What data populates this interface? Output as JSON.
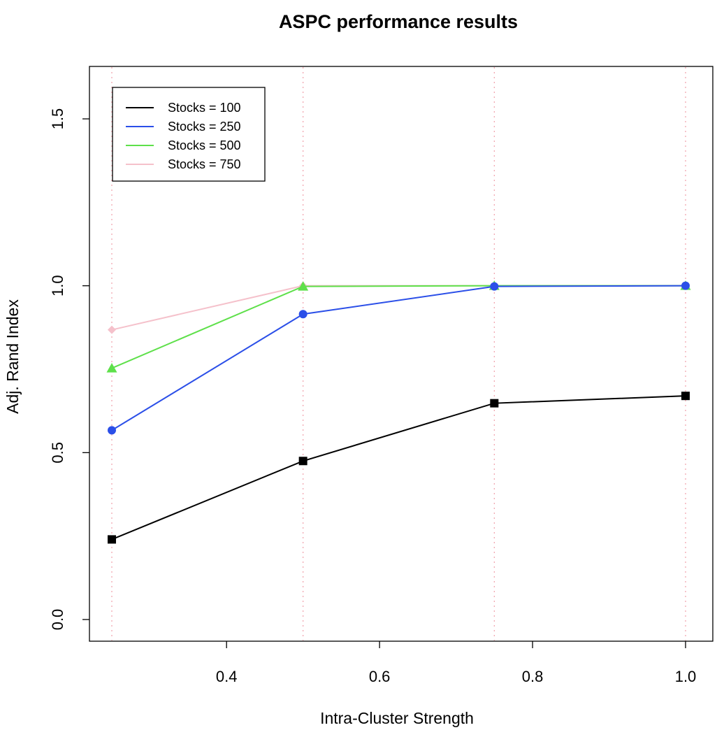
{
  "chart_data": {
    "type": "line",
    "title": "ASPC performance results",
    "xlabel": "Intra-Cluster Strength",
    "ylabel": "Adj. Rand Index",
    "x": [
      0.25,
      0.5,
      0.75,
      1.0
    ],
    "xlim": [
      0.25,
      1.0
    ],
    "ylim": [
      0.0,
      1.6
    ],
    "xticks": [
      0.4,
      0.6,
      0.8,
      1.0
    ],
    "xtick_labels": [
      "0.4",
      "0.6",
      "0.8",
      "1.0"
    ],
    "yticks": [
      0.0,
      0.5,
      1.0,
      1.5
    ],
    "ytick_labels": [
      "0.0",
      "0.5",
      "1.0",
      "1.5"
    ],
    "grid": "dotted vertical lines at x values",
    "legend_position": "top-left",
    "series": [
      {
        "name": "Stocks = 100",
        "values": [
          0.24,
          0.475,
          0.648,
          0.67
        ],
        "color": "#000000",
        "marker": "square"
      },
      {
        "name": "Stocks = 250",
        "values": [
          0.567,
          0.915,
          0.998,
          1.0
        ],
        "color": "#2b4fe8",
        "marker": "circle"
      },
      {
        "name": "Stocks = 500",
        "values": [
          0.753,
          0.998,
          1.0,
          1.0
        ],
        "color": "#5ee04a",
        "marker": "triangle"
      },
      {
        "name": "Stocks = 750",
        "values": [
          0.868,
          1.0,
          1.0,
          1.0
        ],
        "color": "#f5c1cb",
        "marker": "diamond"
      }
    ]
  }
}
